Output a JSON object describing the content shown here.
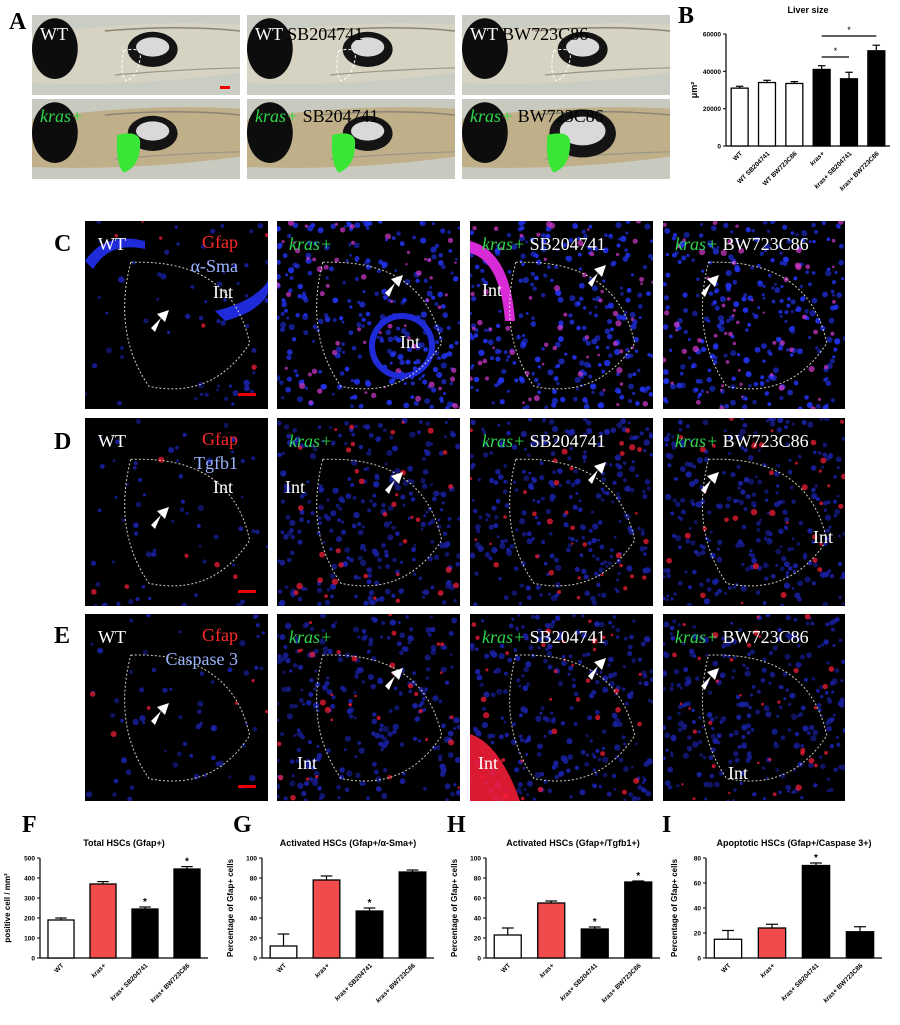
{
  "panel_labels": {
    "A": "A",
    "B": "B",
    "C": "C",
    "D": "D",
    "E": "E",
    "F": "F",
    "G": "G",
    "H": "H",
    "I": "I"
  },
  "panel_a": {
    "top": [
      {
        "a": "WT",
        "b": ""
      },
      {
        "a": "WT",
        "b": "SB204741"
      },
      {
        "a": "WT",
        "b": "BW723C86"
      }
    ],
    "bottom": [
      {
        "g": "kras+",
        "b": ""
      },
      {
        "g": "kras+",
        "b": "SB204741"
      },
      {
        "g": "kras+",
        "b": "BW723C86"
      }
    ]
  },
  "row_c": {
    "tiles": [
      {
        "g": "",
        "w": "WT"
      },
      {
        "g": "kras+",
        "w": ""
      },
      {
        "g": "kras+",
        "w": "SB204741"
      },
      {
        "g": "kras+",
        "w": "BW723C86"
      }
    ],
    "stain1": "Gfap",
    "stain2": "α-Sma",
    "int": "Int"
  },
  "row_d": {
    "tiles": [
      {
        "g": "",
        "w": "WT"
      },
      {
        "g": "kras+",
        "w": ""
      },
      {
        "g": "kras+",
        "w": "SB204741"
      },
      {
        "g": "kras+",
        "w": "BW723C86"
      }
    ],
    "stain1": "Gfap",
    "stain2": "Tgfb1",
    "int": "Int"
  },
  "row_e": {
    "tiles": [
      {
        "g": "",
        "w": "WT"
      },
      {
        "g": "kras+",
        "w": ""
      },
      {
        "g": "kras+",
        "w": "SB204741"
      },
      {
        "g": "kras+",
        "w": "BW723C86"
      }
    ],
    "stain1": "Gfap",
    "stain2": "Caspase 3",
    "int": "Int"
  },
  "colors": {
    "wt": "#ffffff",
    "kras": "#ff4d4d",
    "treated": "#000000",
    "gfp": "#39e635",
    "dapi": "#1f2bd8",
    "gfap": "#ff1f3a"
  },
  "chart_data": [
    {
      "id": "B",
      "type": "bar",
      "title": "Liver size",
      "ylabel": "μm²",
      "categories": [
        "WT",
        "WT SB204741",
        "WT BW723C86",
        "kras+",
        "kras+ SB204741",
        "kras+ BW723C86"
      ],
      "values": [
        31000,
        34000,
        33500,
        41000,
        36000,
        51000
      ],
      "errors": [
        1000,
        1200,
        1000,
        2000,
        3500,
        3000
      ],
      "fills": [
        "#ffffff",
        "#ffffff",
        "#ffffff",
        "#000000",
        "#000000",
        "#000000"
      ],
      "ylim": [
        0,
        60000
      ],
      "yticks": [
        0,
        20000,
        40000,
        60000
      ],
      "yticklabels": [
        "0",
        "20000",
        "40000",
        "60000"
      ],
      "sig": [
        {
          "from": 3,
          "to": 4,
          "label": "*"
        },
        {
          "from": 3,
          "to": 5,
          "label": "*"
        }
      ]
    },
    {
      "id": "F",
      "type": "bar",
      "title": "Total HSCs (Gfap+)",
      "ylabel": "positive cell / mm²",
      "categories": [
        "WT",
        "kras+",
        "kras+ SB204741",
        "kras+ BW723C86"
      ],
      "values": [
        190,
        370,
        245,
        445
      ],
      "errors": [
        10,
        12,
        10,
        12
      ],
      "fills": [
        "#ffffff",
        "#f24b4b",
        "#000000",
        "#000000"
      ],
      "ylim": [
        0,
        500
      ],
      "yticks": [
        0,
        100,
        200,
        300,
        400,
        500
      ],
      "yticklabels": [
        "0",
        "100",
        "200",
        "300",
        "400",
        "500"
      ],
      "stars": [
        "",
        "",
        "*",
        "*"
      ]
    },
    {
      "id": "G",
      "type": "bar",
      "title": "Activated HSCs (Gfap+/α-Sma+)",
      "ylabel": "Percentage of Gfap+ cells",
      "categories": [
        "WT",
        "kras+",
        "kras+ SB204741",
        "kras+ BW723C86"
      ],
      "values": [
        12,
        78,
        47,
        86
      ],
      "errors": [
        12,
        4,
        3,
        2
      ],
      "fills": [
        "#ffffff",
        "#f24b4b",
        "#000000",
        "#000000"
      ],
      "ylim": [
        0,
        100
      ],
      "yticks": [
        0,
        20,
        40,
        60,
        80,
        100
      ],
      "yticklabels": [
        "0",
        "20",
        "40",
        "60",
        "80",
        "100"
      ],
      "stars": [
        "",
        "",
        "*",
        ""
      ]
    },
    {
      "id": "H",
      "type": "bar",
      "title": "Activated HSCs (Gfap+/Tgfb1+)",
      "ylabel": "Percentage of Gfap+ cells",
      "categories": [
        "WT",
        "kras+",
        "kras+ SB204741",
        "kras+ BW723C86"
      ],
      "values": [
        23,
        55,
        29,
        76
      ],
      "errors": [
        7,
        2,
        2,
        1
      ],
      "fills": [
        "#ffffff",
        "#f24b4b",
        "#000000",
        "#000000"
      ],
      "ylim": [
        0,
        100
      ],
      "yticks": [
        0,
        20,
        40,
        60,
        80,
        100
      ],
      "yticklabels": [
        "0",
        "20",
        "40",
        "60",
        "80",
        "100"
      ],
      "stars": [
        "",
        "",
        "*",
        "*"
      ]
    },
    {
      "id": "I",
      "type": "bar",
      "title": "Apoptotic HSCs (Gfap+/Caspase 3+)",
      "ylabel": "Percentage of Gfap+ cells",
      "categories": [
        "WT",
        "kras+",
        "kras+ SB204741",
        "kras+ BW723C86"
      ],
      "values": [
        15,
        24,
        74,
        21
      ],
      "errors": [
        7,
        3,
        2,
        4
      ],
      "fills": [
        "#ffffff",
        "#f24b4b",
        "#000000",
        "#000000"
      ],
      "ylim": [
        0,
        80
      ],
      "yticks": [
        0,
        20,
        40,
        60,
        80
      ],
      "yticklabels": [
        "0",
        "20",
        "40",
        "60",
        "80"
      ],
      "stars": [
        "",
        "",
        "*",
        ""
      ]
    }
  ]
}
